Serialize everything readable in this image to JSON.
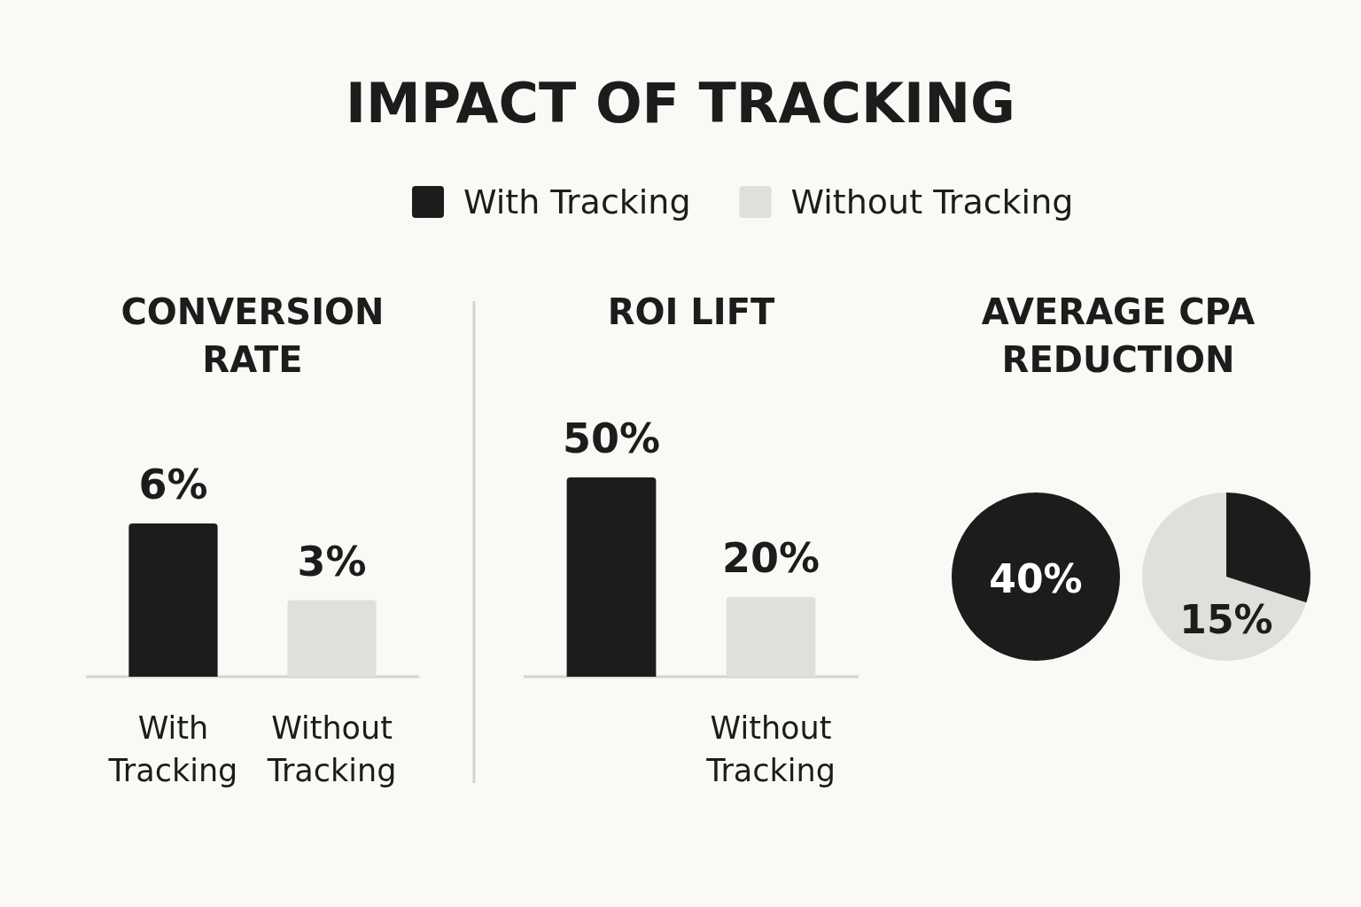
{
  "chart_data": [
    {
      "type": "other",
      "title": "IMPACT OF TRACKING"
    },
    {
      "type": "bar",
      "title": "CONVERSION RATE",
      "categories": [
        "With Tracking",
        "Without Tracking"
      ],
      "series": [
        {
          "name": "With Tracking",
          "color": "#1c1c1c",
          "values": [
            6,
            null
          ],
          "value_labels": [
            "6%",
            null
          ]
        },
        {
          "name": "Without Tracking",
          "color": "#e1dfdb",
          "values": [
            null,
            3
          ],
          "value_labels": [
            null,
            "3%"
          ]
        }
      ],
      "legend": "top"
    },
    {
      "type": "bar",
      "title": "ROI LIFT",
      "categories": [
        null,
        "Without Tracking"
      ],
      "colors": [
        "#1c1c1c",
        "#e1dfdb"
      ],
      "values": [
        50,
        20
      ],
      "value_labels": [
        "50%",
        "20%"
      ]
    },
    {
      "type": "other",
      "title": "AVERAGE CPA REDUCTION",
      "annotations": [
        "40%",
        "15%"
      ]
    }
  ]
}
